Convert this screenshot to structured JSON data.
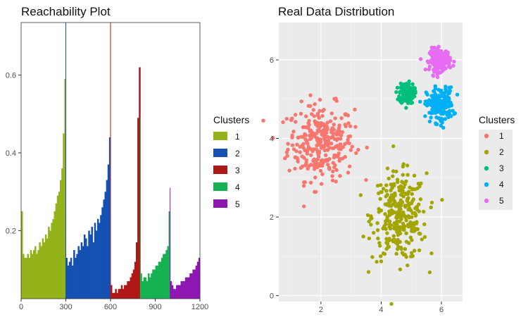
{
  "chart_data": [
    {
      "type": "bar",
      "title": "Reachability Plot",
      "xlim": [
        0,
        1200
      ],
      "ylim": [
        0.025,
        0.735
      ],
      "x_ticks": [
        0,
        300,
        600,
        900,
        1200
      ],
      "y_ticks": [
        0.2,
        0.4,
        0.6
      ],
      "grid": false,
      "legend_title": "Clusters",
      "legend_position": "right",
      "colors": {
        "1": "#94B21A",
        "2": "#1551B3",
        "3": "#B01818",
        "4": "#16B150",
        "5": "#8E17B2"
      },
      "series": [
        {
          "name": "1",
          "x_range": [
            0,
            300
          ],
          "values": [
            0.25,
            0.14,
            0.13,
            0.13,
            0.14,
            0.13,
            0.15,
            0.14,
            0.15,
            0.16,
            0.14,
            0.15,
            0.17,
            0.16,
            0.18,
            0.17,
            0.19,
            0.18,
            0.21,
            0.2,
            0.22,
            0.23,
            0.25,
            0.27,
            0.29,
            0.3,
            0.33,
            0.36,
            0.45,
            0.59
          ]
        },
        {
          "name": "2",
          "x_range": [
            300,
            600
          ],
          "values": [
            0.13,
            0.11,
            0.12,
            0.13,
            0.11,
            0.15,
            0.13,
            0.14,
            0.16,
            0.15,
            0.17,
            0.16,
            0.19,
            0.18,
            0.16,
            0.2,
            0.19,
            0.21,
            0.17,
            0.22,
            0.2,
            0.23,
            0.22,
            0.24,
            0.26,
            0.28,
            0.3,
            0.33,
            0.37,
            0.44
          ]
        },
        {
          "name": "3",
          "x_range": [
            600,
            800
          ],
          "values": [
            0.06,
            0.04,
            0.04,
            0.05,
            0.04,
            0.05,
            0.05,
            0.06,
            0.05,
            0.06,
            0.06,
            0.07,
            0.07,
            0.08,
            0.09,
            0.1,
            0.12,
            0.17,
            0.49,
            0.62
          ]
        },
        {
          "name": "4",
          "x_range": [
            800,
            1000
          ],
          "values": [
            0.09,
            0.07,
            0.08,
            0.08,
            0.07,
            0.09,
            0.08,
            0.09,
            0.1,
            0.1,
            0.11,
            0.11,
            0.12,
            0.12,
            0.13,
            0.14,
            0.14,
            0.15,
            0.16,
            0.25
          ]
        },
        {
          "name": "5",
          "x_range": [
            1000,
            1200
          ],
          "values": [
            0.07,
            0.06,
            0.05,
            0.05,
            0.06,
            0.06,
            0.06,
            0.07,
            0.07,
            0.07,
            0.08,
            0.08,
            0.08,
            0.09,
            0.09,
            0.1,
            0.1,
            0.11,
            0.12,
            0.13
          ]
        }
      ],
      "peaks": [
        {
          "x": 300,
          "y": 0.735,
          "series": "2"
        },
        {
          "x": 600,
          "y": 0.735,
          "series": "3"
        },
        {
          "x": 800,
          "y": 0.49,
          "series": "4"
        },
        {
          "x": 1000,
          "y": 0.31,
          "series": "5"
        }
      ]
    },
    {
      "type": "scatter",
      "title": "Real Data Distribution",
      "xlim": [
        0.6,
        6.7
      ],
      "ylim": [
        -0.15,
        6.95
      ],
      "x_ticks": [
        2,
        4,
        6
      ],
      "y_ticks": [
        0,
        2,
        4,
        6
      ],
      "grid": true,
      "legend_title": "Clusters",
      "legend_position": "right",
      "colors": {
        "1": "#F8766D",
        "2": "#A3A500",
        "3": "#00BF7D",
        "4": "#00B0F6",
        "5": "#E76BF3"
      },
      "series": [
        {
          "name": "1",
          "center": [
            2.0,
            3.9
          ],
          "spread": [
            0.55,
            0.48
          ],
          "count": 300
        },
        {
          "name": "2",
          "center": [
            4.6,
            2.0
          ],
          "spread": [
            0.45,
            0.55
          ],
          "count": 300
        },
        {
          "name": "3",
          "center": [
            4.85,
            5.15
          ],
          "spread": [
            0.12,
            0.13
          ],
          "count": 200
        },
        {
          "name": "4",
          "center": [
            5.95,
            4.85
          ],
          "spread": [
            0.22,
            0.22
          ],
          "count": 200
        },
        {
          "name": "5",
          "center": [
            5.95,
            6.0
          ],
          "spread": [
            0.17,
            0.14
          ],
          "count": 200
        }
      ]
    }
  ]
}
